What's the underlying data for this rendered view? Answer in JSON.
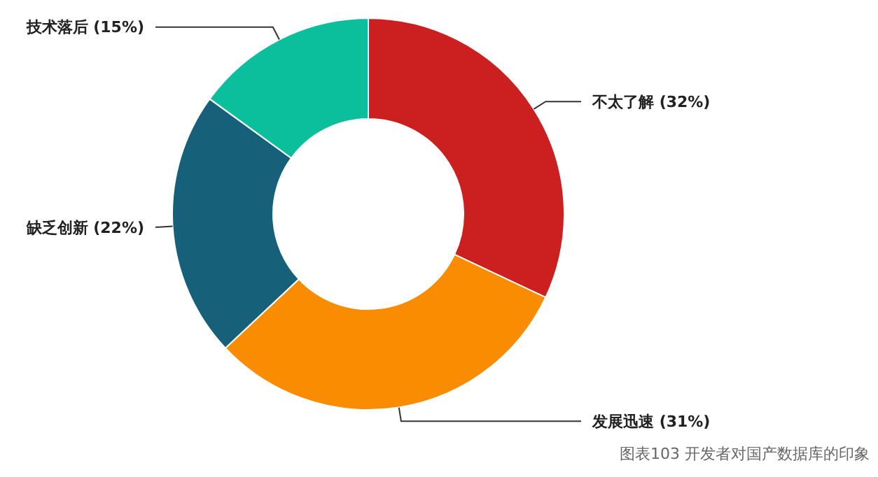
{
  "chart_data": {
    "type": "donut",
    "categories": [
      "不太了解",
      "发展迅速",
      "缺乏创新",
      "技术落后"
    ],
    "values": [
      32,
      31,
      22,
      15
    ],
    "value_labels": [
      "(32%)",
      "(31%)",
      "(22%)",
      "(15%)"
    ],
    "colors": [
      "#cc1f1f",
      "#f98c00",
      "#17607a",
      "#0bbf9c"
    ],
    "annotations": [
      "图表103 开发者对国产数据库的印象"
    ]
  }
}
